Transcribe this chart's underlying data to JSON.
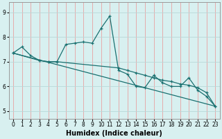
{
  "xlabel": "Humidex (Indice chaleur)",
  "xlim": [
    -0.5,
    23.5
  ],
  "ylim": [
    4.7,
    9.4
  ],
  "xticks": [
    0,
    1,
    2,
    3,
    4,
    5,
    6,
    7,
    8,
    9,
    10,
    11,
    12,
    13,
    14,
    15,
    16,
    17,
    18,
    19,
    20,
    21,
    22,
    23
  ],
  "yticks": [
    5,
    6,
    7,
    8,
    9
  ],
  "bg_color": "#d8f0f0",
  "vgrid_color": "#e8a0a0",
  "hgrid_color": "#b8d8d8",
  "line_color": "#1a7070",
  "line1_x": [
    0,
    1,
    2,
    3,
    4,
    5,
    6,
    7,
    8,
    9,
    10,
    11,
    12,
    13,
    14,
    15,
    16,
    17,
    18,
    19,
    20,
    21,
    22,
    23
  ],
  "line1_y": [
    7.35,
    7.6,
    7.25,
    7.05,
    7.0,
    7.0,
    7.7,
    7.75,
    7.8,
    7.75,
    8.35,
    8.85,
    6.65,
    6.5,
    6.0,
    5.95,
    6.45,
    6.15,
    6.0,
    6.0,
    6.35,
    5.85,
    5.6,
    5.2
  ],
  "line2_x": [
    0,
    3,
    4,
    5,
    12,
    13,
    14,
    15,
    16,
    17,
    18,
    19,
    20,
    21,
    22,
    23
  ],
  "line2_y": [
    7.35,
    7.05,
    7.0,
    7.0,
    6.75,
    6.65,
    6.55,
    6.45,
    6.35,
    6.25,
    6.2,
    6.1,
    6.05,
    5.95,
    5.75,
    5.2
  ],
  "line3_x": [
    0,
    23
  ],
  "line3_y": [
    7.35,
    5.2
  ],
  "xlabel_fontsize": 7,
  "tick_fontsize": 5.5
}
